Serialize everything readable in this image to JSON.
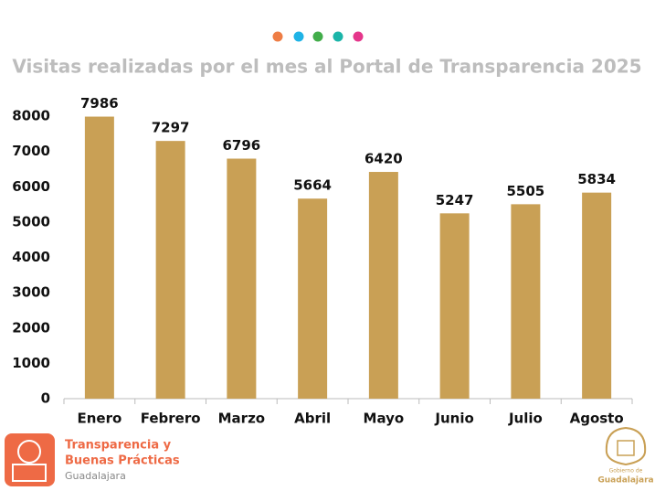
{
  "chart_data": {
    "type": "bar",
    "title": "Visitas realizadas por el mes al Portal de Transparencia 2025",
    "categories": [
      "Enero",
      "Febrero",
      "Marzo",
      "Abril",
      "Mayo",
      "Junio",
      "Julio",
      "Agosto"
    ],
    "values": [
      7986,
      7297,
      6796,
      5664,
      6420,
      5247,
      5505,
      5834
    ],
    "color": "#c9a055",
    "ylim": [
      0,
      8000
    ],
    "yticks": [
      0,
      1000,
      2000,
      3000,
      4000,
      5000,
      6000,
      7000,
      8000
    ],
    "grid": false
  },
  "footer": {
    "left_logo": {
      "line1": "Transparencia y",
      "line2": "Buenas Prácticas",
      "line3": "Guadalajara"
    },
    "right_logo": {
      "line1": "Gobierno de",
      "line2": "Guadalajara"
    }
  }
}
